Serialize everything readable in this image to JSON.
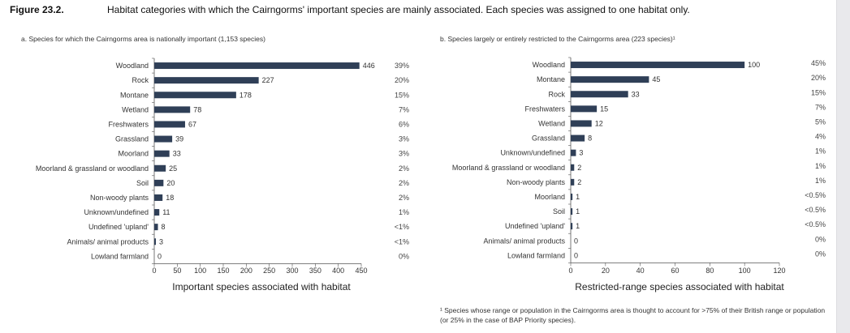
{
  "figure": {
    "label": "Figure 23.2.",
    "caption": "Habitat categories with which the Cairngorms' important species are mainly associated. Each species was assigned to one habitat only.",
    "footnote": "¹ Species whose range or population in the Cairngorms area is thought to account for >75% of their British range or population (or 25% in the case of BAP Priority species).",
    "bar_color": "#2f3f57"
  },
  "chart_data": [
    {
      "type": "bar",
      "orientation": "horizontal",
      "title": "a. Species for which the Cairngorms area is nationally important (1,153 species)",
      "xlabel": "Important species associated with habitat",
      "ylabel": "",
      "xlim": [
        0,
        450
      ],
      "xticks": [
        0,
        50,
        100,
        150,
        200,
        250,
        300,
        350,
        400,
        450
      ],
      "categories": [
        "Woodland",
        "Rock",
        "Montane",
        "Wetland",
        "Freshwaters",
        "Grassland",
        "Moorland",
        "Moorland & grassland or woodland",
        "Soil",
        "Non-woody plants",
        "Unknown/undefined",
        "Undefined 'upland'",
        "Animals/ animal products",
        "Lowland farmland"
      ],
      "values": [
        446,
        227,
        178,
        78,
        67,
        39,
        33,
        25,
        20,
        18,
        11,
        8,
        3,
        0
      ],
      "percent_labels": [
        "39%",
        "20%",
        "15%",
        "7%",
        "6%",
        "3%",
        "3%",
        "2%",
        "2%",
        "2%",
        "1%",
        "<1%",
        "<1%",
        "0%"
      ]
    },
    {
      "type": "bar",
      "orientation": "horizontal",
      "title": "b. Species largely or entirely restricted to the Cairngorms area (223 species)¹",
      "xlabel": "Restricted-range species associated with habitat",
      "ylabel": "",
      "xlim": [
        0,
        120
      ],
      "xticks": [
        0,
        20,
        40,
        60,
        80,
        100,
        120
      ],
      "categories": [
        "Woodland",
        "Montane",
        "Rock",
        "Freshwaters",
        "Wetland",
        "Grassland",
        "Unknown/undefined",
        "Moorland & grassland or woodland",
        "Non-woody plants",
        "Moorland",
        "Soil",
        "Undefined 'upland'",
        "Animals/ animal products",
        "Lowland farmland"
      ],
      "values": [
        100,
        45,
        33,
        15,
        12,
        8,
        3,
        2,
        2,
        1,
        1,
        1,
        0,
        0
      ],
      "percent_labels": [
        "45%",
        "20%",
        "15%",
        "7%",
        "5%",
        "4%",
        "1%",
        "1%",
        "1%",
        "<0.5%",
        "<0.5%",
        "<0.5%",
        "0%",
        "0%"
      ]
    }
  ]
}
